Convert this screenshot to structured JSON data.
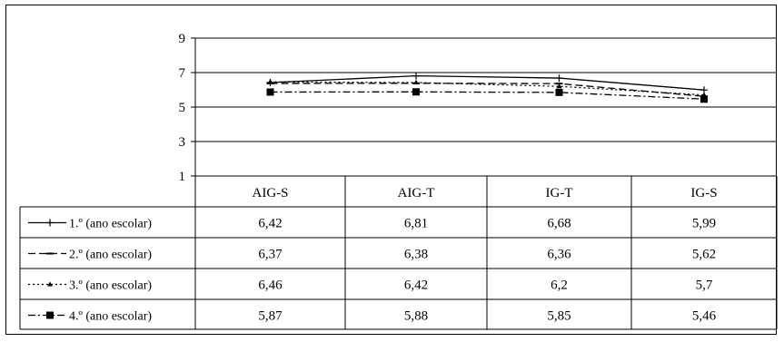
{
  "chart_data": {
    "type": "line",
    "title": "",
    "xlabel": "",
    "ylabel": "",
    "ylim": [
      1,
      9
    ],
    "yticks": [
      "9",
      "7",
      "5",
      "3",
      "1"
    ],
    "grid": true,
    "legend_placement": "data-table-left",
    "categories": [
      "AIG-S",
      "AIG-T",
      "IG-T",
      "IG-S"
    ],
    "series": [
      {
        "name": "1.º (ano escolar)",
        "values": [
          6.42,
          6.81,
          6.68,
          5.99
        ],
        "display": [
          "6,42",
          "6,81",
          "6,68",
          "5,99"
        ],
        "line_style": "solid",
        "marker": "plus"
      },
      {
        "name": "2.º (ano escolar)",
        "values": [
          6.37,
          6.38,
          6.36,
          5.62
        ],
        "display": [
          "6,37",
          "6,38",
          "6,36",
          "5,62"
        ],
        "line_style": "dashed",
        "marker": "dash"
      },
      {
        "name": "3.º (ano escolar)",
        "values": [
          6.46,
          6.42,
          6.2,
          5.7
        ],
        "display": [
          "6,46",
          "6,42",
          "6,2",
          "5,7"
        ],
        "line_style": "dotted",
        "marker": "triangle"
      },
      {
        "name": "4.º (ano escolar)",
        "values": [
          5.87,
          5.88,
          5.85,
          5.46
        ],
        "display": [
          "5,87",
          "5,88",
          "5,85",
          "5,46"
        ],
        "line_style": "dash-dot",
        "marker": "square"
      }
    ],
    "colors": {
      "line": "#000000",
      "background": "#ffffff"
    }
  }
}
